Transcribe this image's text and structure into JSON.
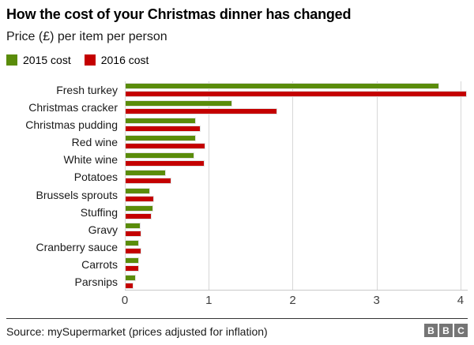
{
  "header": {
    "title": "How the cost of your Christmas dinner has changed",
    "subtitle": "Price (£) per item per person"
  },
  "legend": [
    {
      "label": "2015 cost",
      "color": "#5a8c0a"
    },
    {
      "label": "2016 cost",
      "color": "#c40000"
    }
  ],
  "chart_data": {
    "type": "bar",
    "orientation": "horizontal",
    "title": "How the cost of your Christmas dinner has changed",
    "subtitle": "Price (£) per item per person",
    "xlabel": "Price (£)",
    "ylabel": "",
    "grid": true,
    "legend_position": "top-left",
    "xlim": [
      0,
      4.085
    ],
    "x_ticks": [
      0,
      1,
      2,
      3,
      4
    ],
    "categories": [
      "Fresh turkey",
      "Christmas cracker",
      "Christmas pudding",
      "Red wine",
      "White wine",
      "Potatoes",
      "Brussels sprouts",
      "Stuffing",
      "Gravy",
      "Cranberry sauce",
      "Carrots",
      "Parsnips"
    ],
    "series": [
      {
        "name": "2015 cost",
        "color": "#5a8c0a",
        "values": [
          3.75,
          1.28,
          0.85,
          0.85,
          0.83,
          0.49,
          0.3,
          0.34,
          0.19,
          0.17,
          0.17,
          0.13
        ]
      },
      {
        "name": "2016 cost",
        "color": "#c40000",
        "values": [
          4.08,
          1.82,
          0.9,
          0.96,
          0.95,
          0.56,
          0.35,
          0.32,
          0.2,
          0.2,
          0.17,
          0.1
        ]
      }
    ]
  },
  "footer": {
    "source": "Source: mySupermarket (prices adjusted for inflation)",
    "logo_letters": [
      "B",
      "B",
      "C"
    ]
  },
  "colors": {
    "series_2015": "#5a8c0a",
    "series_2016": "#c40000",
    "gridline": "#d7d7d7",
    "logo_bg": "#757575"
  }
}
